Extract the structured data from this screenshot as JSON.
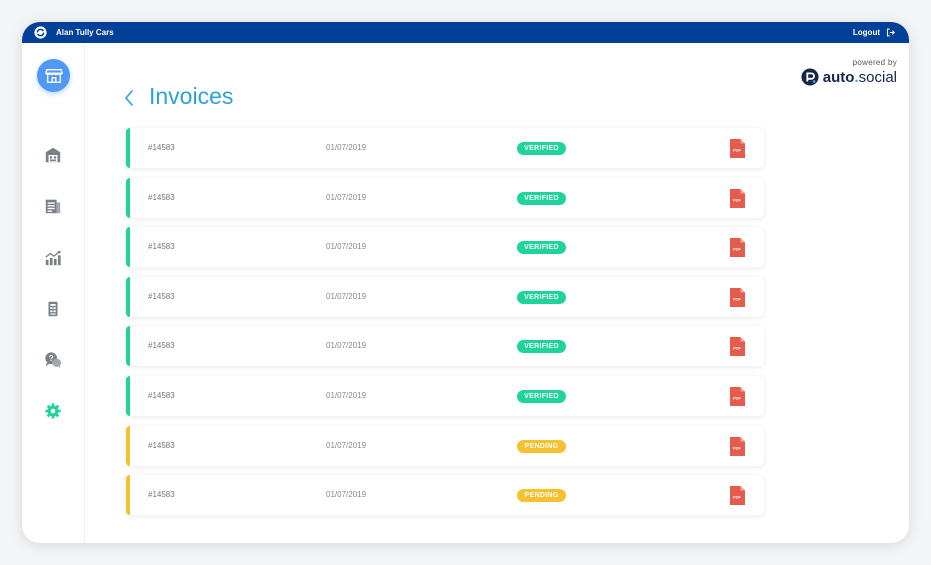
{
  "header": {
    "app_name": "Alan Tully Cars",
    "logout_label": "Logout"
  },
  "sidebar": {
    "items": [
      {
        "name": "storefront-icon",
        "active": true
      },
      {
        "name": "dealership-icon"
      },
      {
        "name": "documents-icon"
      },
      {
        "name": "analytics-icon"
      },
      {
        "name": "invoice-icon"
      },
      {
        "name": "support-chat-icon"
      },
      {
        "name": "settings-icon",
        "color": "#1fd49b"
      }
    ]
  },
  "powered": {
    "label": "powered by",
    "logo_auto": "auto",
    "logo_dot": ".",
    "logo_social": "social"
  },
  "page": {
    "title": "Invoices"
  },
  "colors": {
    "verified": "#1fd49b",
    "pending": "#f6c02e",
    "pdf": "#e55b4c",
    "header": "#004098",
    "title": "#2aa3d8"
  },
  "invoices": [
    {
      "number": "#14583",
      "date": "01/07/2019",
      "status": "VERIFIED",
      "pdf_label": "PDF"
    },
    {
      "number": "#14583",
      "date": "01/07/2019",
      "status": "VERIFIED",
      "pdf_label": "PDF"
    },
    {
      "number": "#14583",
      "date": "01/07/2019",
      "status": "VERIFIED",
      "pdf_label": "PDF"
    },
    {
      "number": "#14583",
      "date": "01/07/2019",
      "status": "VERIFIED",
      "pdf_label": "PDF"
    },
    {
      "number": "#14583",
      "date": "01/07/2019",
      "status": "VERIFIED",
      "pdf_label": "PDF"
    },
    {
      "number": "#14583",
      "date": "01/07/2019",
      "status": "VERIFIED",
      "pdf_label": "PDF"
    },
    {
      "number": "#14583",
      "date": "01/07/2019",
      "status": "PENDING",
      "pdf_label": "PDF"
    },
    {
      "number": "#14583",
      "date": "01/07/2019",
      "status": "PENDING",
      "pdf_label": "PDF"
    }
  ]
}
